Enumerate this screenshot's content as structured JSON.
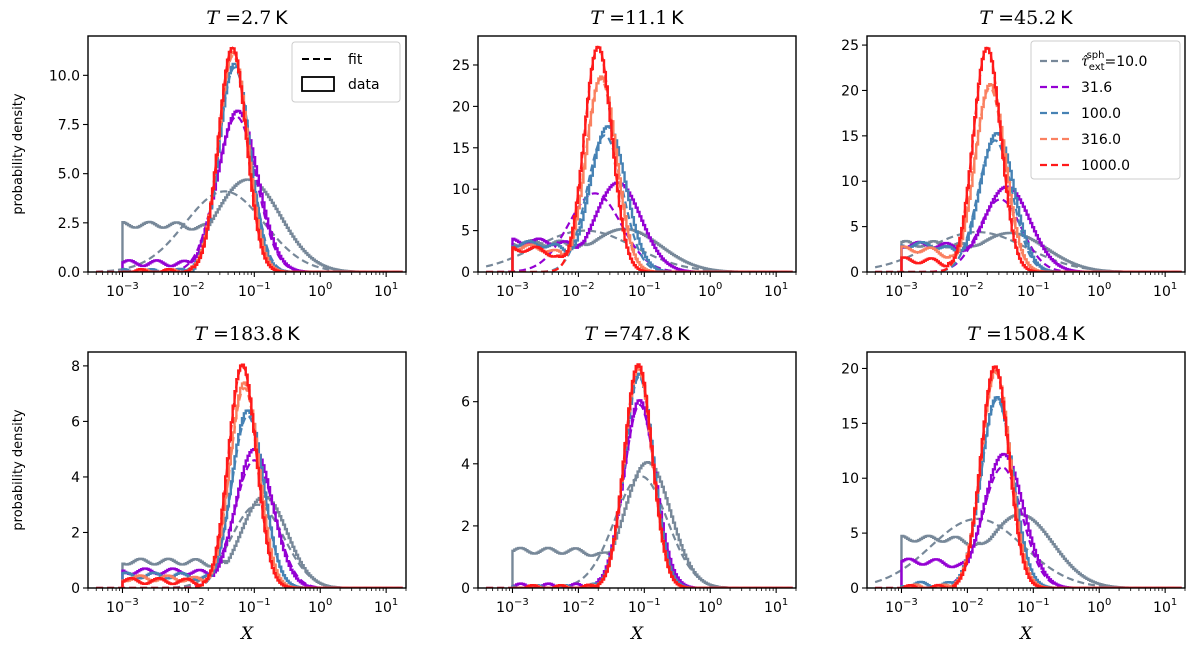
{
  "figure": {
    "xlabel": "X",
    "ylabel": "probability density",
    "style_legend": [
      {
        "label": "fit",
        "style": "dashed"
      },
      {
        "label": "data",
        "style": "step"
      }
    ],
    "tau_legend_title": "τ̂ext^sph",
    "colors": {
      "10.0": "#778899",
      "31.6": "#9400d3",
      "100.0": "#4682b4",
      "316.0": "#fa8060",
      "1000.0": "#ff1a1a"
    }
  },
  "chart_data": [
    {
      "type": "line",
      "title": "T = 2.7 K",
      "title_parts": {
        "var": "T",
        "value": "2.7",
        "unit": "K"
      },
      "xscale": "log",
      "xlim": [
        0.0003,
        20
      ],
      "ylim": [
        0,
        12.0
      ],
      "yticks": [
        0.0,
        2.5,
        5.0,
        7.5,
        10.0
      ],
      "ytick_labels": [
        "0.0",
        "2.5",
        "5.0",
        "7.5",
        "10.0"
      ],
      "xticks": [
        -3,
        -2,
        -1,
        0,
        1
      ],
      "legend": "style",
      "series": [
        {
          "name": "10.0",
          "data_peak": 4.7,
          "data_mu": -1.1,
          "data_sigma": 0.5,
          "data_floor": 2.4,
          "fit_peak": 4.1,
          "fit_mu": -1.45,
          "fit_sigma": 0.6
        },
        {
          "name": "31.6",
          "data_peak": 8.2,
          "data_mu": -1.25,
          "data_sigma": 0.3,
          "data_floor": 0.45,
          "fit_peak": 7.9,
          "fit_mu": -1.27,
          "fit_sigma": 0.3
        },
        {
          "name": "100.0",
          "data_peak": 10.6,
          "data_mu": -1.3,
          "data_sigma": 0.23,
          "data_floor": 0.0,
          "fit_peak": 10.4,
          "fit_mu": -1.3,
          "fit_sigma": 0.24
        },
        {
          "name": "316.0",
          "data_peak": 11.2,
          "data_mu": -1.32,
          "data_sigma": 0.22,
          "data_floor": 0.0,
          "fit_peak": 11.0,
          "fit_mu": -1.32,
          "fit_sigma": 0.22
        },
        {
          "name": "1000.0",
          "data_peak": 11.4,
          "data_mu": -1.33,
          "data_sigma": 0.21,
          "data_floor": 0.0,
          "fit_peak": 11.4,
          "fit_mu": -1.33,
          "fit_sigma": 0.21
        }
      ]
    },
    {
      "type": "line",
      "title": "T = 11.1 K",
      "title_parts": {
        "var": "T",
        "value": "11.1",
        "unit": "K"
      },
      "xscale": "log",
      "xlim": [
        0.0003,
        20
      ],
      "ylim": [
        0,
        28.5
      ],
      "yticks": [
        0,
        5,
        10,
        15,
        20,
        25
      ],
      "ytick_labels": [
        "0",
        "5",
        "10",
        "15",
        "20",
        "25"
      ],
      "xticks": [
        -3,
        -2,
        -1,
        0,
        1
      ],
      "legend": "none",
      "series": [
        {
          "name": "10.0",
          "data_peak": 5.2,
          "data_mu": -1.3,
          "data_sigma": 0.55,
          "data_floor": 3.5,
          "fit_peak": 5.0,
          "fit_mu": -1.9,
          "fit_sigma": 0.75
        },
        {
          "name": "31.6",
          "data_peak": 10.8,
          "data_mu": -1.4,
          "data_sigma": 0.35,
          "data_floor": 3.7,
          "fit_peak": 9.5,
          "fit_mu": -1.75,
          "fit_sigma": 0.4
        },
        {
          "name": "100.0",
          "data_peak": 17.6,
          "data_mu": -1.55,
          "data_sigma": 0.27,
          "data_floor": 3.4,
          "fit_peak": 16.5,
          "fit_mu": -1.6,
          "fit_sigma": 0.27
        },
        {
          "name": "316.0",
          "data_peak": 23.6,
          "data_mu": -1.65,
          "data_sigma": 0.23,
          "data_floor": 3.0,
          "fit_peak": 23.3,
          "fit_mu": -1.66,
          "fit_sigma": 0.23
        },
        {
          "name": "1000.0",
          "data_peak": 27.2,
          "data_mu": -1.7,
          "data_sigma": 0.21,
          "data_floor": 2.8,
          "fit_peak": 27.2,
          "fit_mu": -1.7,
          "fit_sigma": 0.21
        }
      ]
    },
    {
      "type": "line",
      "title": "T = 45.2 K",
      "title_parts": {
        "var": "T",
        "value": "45.2",
        "unit": "K"
      },
      "xscale": "log",
      "xlim": [
        0.0003,
        20
      ],
      "ylim": [
        0,
        26.0
      ],
      "yticks": [
        0,
        5,
        10,
        15,
        20,
        25
      ],
      "ytick_labels": [
        "0",
        "5",
        "10",
        "15",
        "20",
        "25"
      ],
      "xticks": [
        -3,
        -2,
        -1,
        0,
        1
      ],
      "legend": "tau",
      "series": [
        {
          "name": "10.0",
          "data_peak": 4.3,
          "data_mu": -1.35,
          "data_sigma": 0.55,
          "data_floor": 3.1,
          "fit_peak": 4.4,
          "fit_mu": -1.85,
          "fit_sigma": 0.75
        },
        {
          "name": "31.6",
          "data_peak": 9.4,
          "data_mu": -1.4,
          "data_sigma": 0.35,
          "data_floor": 3.0,
          "fit_peak": 8.0,
          "fit_mu": -1.5,
          "fit_sigma": 0.32
        },
        {
          "name": "100.0",
          "data_peak": 15.3,
          "data_mu": -1.55,
          "data_sigma": 0.26,
          "data_floor": 3.0,
          "fit_peak": 14.5,
          "fit_mu": -1.58,
          "fit_sigma": 0.26
        },
        {
          "name": "316.0",
          "data_peak": 20.7,
          "data_mu": -1.65,
          "data_sigma": 0.23,
          "data_floor": 2.5,
          "fit_peak": 20.3,
          "fit_mu": -1.66,
          "fit_sigma": 0.23
        },
        {
          "name": "1000.0",
          "data_peak": 24.7,
          "data_mu": -1.7,
          "data_sigma": 0.21,
          "data_floor": 1.3,
          "fit_peak": 24.7,
          "fit_mu": -1.7,
          "fit_sigma": 0.21
        }
      ]
    },
    {
      "type": "line",
      "title": "T = 183.8 K",
      "title_parts": {
        "var": "T",
        "value": "183.8",
        "unit": "K"
      },
      "xscale": "log",
      "xlim": [
        0.0003,
        20
      ],
      "ylim": [
        0,
        8.5
      ],
      "yticks": [
        0,
        2,
        4,
        6,
        8
      ],
      "ytick_labels": [
        "0",
        "2",
        "4",
        "6",
        "8"
      ],
      "xticks": [
        -3,
        -2,
        -1,
        0,
        1
      ],
      "legend": "none",
      "series": [
        {
          "name": "10.0",
          "data_peak": 3.3,
          "data_mu": -0.85,
          "data_sigma": 0.35,
          "data_floor": 0.95,
          "fit_peak": 3.0,
          "fit_mu": -0.95,
          "fit_sigma": 0.4
        },
        {
          "name": "31.6",
          "data_peak": 5.0,
          "data_mu": -1.0,
          "data_sigma": 0.28,
          "data_floor": 0.6,
          "fit_peak": 4.6,
          "fit_mu": -1.0,
          "fit_sigma": 0.3
        },
        {
          "name": "100.0",
          "data_peak": 6.4,
          "data_mu": -1.1,
          "data_sigma": 0.24,
          "data_floor": 0.45,
          "fit_peak": 6.2,
          "fit_mu": -1.1,
          "fit_sigma": 0.24
        },
        {
          "name": "316.0",
          "data_peak": 7.4,
          "data_mu": -1.15,
          "data_sigma": 0.22,
          "data_floor": 0.35,
          "fit_peak": 7.2,
          "fit_mu": -1.15,
          "fit_sigma": 0.22
        },
        {
          "name": "1000.0",
          "data_peak": 8.05,
          "data_mu": -1.18,
          "data_sigma": 0.21,
          "data_floor": 0.25,
          "fit_peak": 8.0,
          "fit_mu": -1.18,
          "fit_sigma": 0.21
        }
      ]
    },
    {
      "type": "line",
      "title": "T = 747.8 K",
      "title_parts": {
        "var": "T",
        "value": "747.8",
        "unit": "K"
      },
      "xscale": "log",
      "xlim": [
        0.0003,
        20
      ],
      "ylim": [
        0,
        7.6
      ],
      "yticks": [
        0,
        2,
        4,
        6
      ],
      "ytick_labels": [
        "0",
        "2",
        "4",
        "6"
      ],
      "xticks": [
        -3,
        -2,
        -1,
        0,
        1
      ],
      "legend": "none",
      "series": [
        {
          "name": "10.0",
          "data_peak": 4.05,
          "data_mu": -0.95,
          "data_sigma": 0.35,
          "data_floor": 1.2,
          "fit_peak": 3.6,
          "fit_mu": -1.05,
          "fit_sigma": 0.4
        },
        {
          "name": "31.6",
          "data_peak": 6.05,
          "data_mu": -1.07,
          "data_sigma": 0.24,
          "data_floor": 0.05,
          "fit_peak": 5.9,
          "fit_mu": -1.07,
          "fit_sigma": 0.24
        },
        {
          "name": "100.0",
          "data_peak": 6.9,
          "data_mu": -1.08,
          "data_sigma": 0.22,
          "data_floor": 0.0,
          "fit_peak": 6.8,
          "fit_mu": -1.08,
          "fit_sigma": 0.22
        },
        {
          "name": "316.0",
          "data_peak": 7.1,
          "data_mu": -1.09,
          "data_sigma": 0.21,
          "data_floor": 0.0,
          "fit_peak": 7.05,
          "fit_mu": -1.09,
          "fit_sigma": 0.21
        },
        {
          "name": "1000.0",
          "data_peak": 7.2,
          "data_mu": -1.09,
          "data_sigma": 0.21,
          "data_floor": 0.0,
          "fit_peak": 7.15,
          "fit_mu": -1.09,
          "fit_sigma": 0.21
        }
      ]
    },
    {
      "type": "line",
      "title": "T = 1508.4 K",
      "title_parts": {
        "var": "T",
        "value": "1508.4",
        "unit": "K"
      },
      "xscale": "log",
      "xlim": [
        0.0003,
        20
      ],
      "ylim": [
        0,
        21.5
      ],
      "yticks": [
        0,
        5,
        10,
        15,
        20
      ],
      "ytick_labels": [
        "0",
        "5",
        "10",
        "15",
        "20"
      ],
      "xticks": [
        -3,
        -2,
        -1,
        0,
        1
      ],
      "legend": "none",
      "series": [
        {
          "name": "10.0",
          "data_peak": 6.7,
          "data_mu": -1.2,
          "data_sigma": 0.5,
          "data_floor": 4.5,
          "fit_peak": 6.3,
          "fit_mu": -1.85,
          "fit_sigma": 0.7
        },
        {
          "name": "31.6",
          "data_peak": 12.2,
          "data_mu": -1.45,
          "data_sigma": 0.3,
          "data_floor": 2.4,
          "fit_peak": 11.0,
          "fit_mu": -1.47,
          "fit_sigma": 0.3
        },
        {
          "name": "100.0",
          "data_peak": 17.4,
          "data_mu": -1.55,
          "data_sigma": 0.24,
          "data_floor": 0.3,
          "fit_peak": 17.2,
          "fit_mu": -1.55,
          "fit_sigma": 0.24
        },
        {
          "name": "316.0",
          "data_peak": 19.8,
          "data_mu": -1.57,
          "data_sigma": 0.22,
          "data_floor": 0.05,
          "fit_peak": 19.6,
          "fit_mu": -1.57,
          "fit_sigma": 0.22
        },
        {
          "name": "1000.0",
          "data_peak": 20.2,
          "data_mu": -1.58,
          "data_sigma": 0.21,
          "data_floor": 0.0,
          "fit_peak": 20.1,
          "fit_mu": -1.58,
          "fit_sigma": 0.21
        }
      ]
    }
  ]
}
